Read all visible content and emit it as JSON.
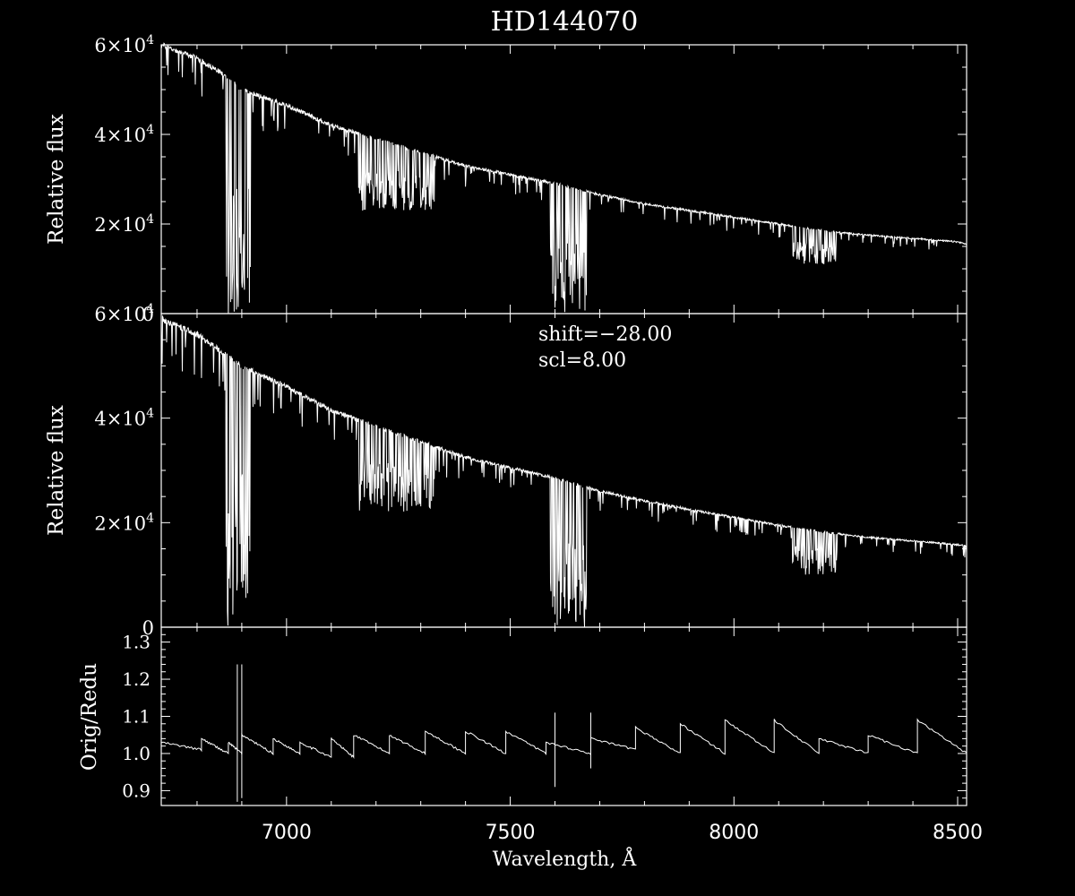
{
  "colors": {
    "background": "#000000",
    "foreground": "#ffffff"
  },
  "chart_data": [
    {
      "type": "line",
      "panel": "top",
      "title": "HD144070",
      "ylabel": "Relative flux",
      "xlim": [
        6720,
        8520
      ],
      "ylim": [
        0,
        60000
      ],
      "yticks": [
        {
          "value": 0,
          "base": "0",
          "exp": ""
        },
        {
          "value": 20000,
          "base": "2×10",
          "exp": "4"
        },
        {
          "value": 40000,
          "base": "4×10",
          "exp": "4"
        },
        {
          "value": 60000,
          "base": "6×10",
          "exp": "4"
        }
      ],
      "continuum": [
        [
          6720,
          60000
        ],
        [
          6800,
          57000
        ],
        [
          6850,
          54000
        ],
        [
          6900,
          50000
        ],
        [
          7000,
          46500
        ],
        [
          7100,
          42000
        ],
        [
          7200,
          39000
        ],
        [
          7300,
          36000
        ],
        [
          7400,
          33000
        ],
        [
          7500,
          31000
        ],
        [
          7600,
          29000
        ],
        [
          7680,
          27000
        ],
        [
          7700,
          26500
        ],
        [
          7800,
          24500
        ],
        [
          7900,
          23000
        ],
        [
          8000,
          21500
        ],
        [
          8100,
          20000
        ],
        [
          8200,
          18500
        ],
        [
          8300,
          17500
        ],
        [
          8400,
          16800
        ],
        [
          8500,
          16000
        ],
        [
          8520,
          15500
        ]
      ],
      "bands": [
        {
          "from": 6865,
          "to": 6920,
          "min": 0
        },
        {
          "from": 7590,
          "to": 7670,
          "min": 0
        },
        {
          "from": 7160,
          "to": 7330,
          "min": 23000
        },
        {
          "from": 8130,
          "to": 8230,
          "min": 11000
        }
      ]
    },
    {
      "type": "line",
      "panel": "middle",
      "ylabel": "Relative flux",
      "xlim": [
        6720,
        8520
      ],
      "ylim": [
        0,
        60000
      ],
      "annotations": [
        "shift=−28.00",
        "scl=8.00"
      ],
      "yticks": [
        {
          "value": 0,
          "base": "0",
          "exp": ""
        },
        {
          "value": 20000,
          "base": "2×10",
          "exp": "4"
        },
        {
          "value": 40000,
          "base": "4×10",
          "exp": "4"
        },
        {
          "value": 60000,
          "base": "6×10",
          "exp": "4"
        }
      ],
      "continuum": [
        [
          6720,
          59000
        ],
        [
          6800,
          56000
        ],
        [
          6850,
          53000
        ],
        [
          6900,
          50000
        ],
        [
          7000,
          46000
        ],
        [
          7100,
          41500
        ],
        [
          7200,
          38500
        ],
        [
          7300,
          35500
        ],
        [
          7400,
          32500
        ],
        [
          7500,
          30500
        ],
        [
          7600,
          28500
        ],
        [
          7680,
          26500
        ],
        [
          7700,
          26000
        ],
        [
          7800,
          24200
        ],
        [
          7900,
          22500
        ],
        [
          8000,
          21000
        ],
        [
          8100,
          19500
        ],
        [
          8200,
          18200
        ],
        [
          8300,
          17200
        ],
        [
          8400,
          16500
        ],
        [
          8500,
          15800
        ],
        [
          8520,
          15500
        ]
      ],
      "bands": [
        {
          "from": 6865,
          "to": 6920,
          "min": 0
        },
        {
          "from": 7590,
          "to": 7670,
          "min": 0
        },
        {
          "from": 7160,
          "to": 7330,
          "min": 22000
        },
        {
          "from": 8130,
          "to": 8230,
          "min": 10000
        }
      ]
    },
    {
      "type": "line",
      "panel": "bottom",
      "ylabel": "Orig/Redu",
      "xlabel": "Wavelength, Å",
      "xlim": [
        6720,
        8520
      ],
      "ylim": [
        0.86,
        1.34
      ],
      "yticks": [
        {
          "value": 0.9,
          "label": "0.9"
        },
        {
          "value": 1.0,
          "label": "1.0"
        },
        {
          "value": 1.1,
          "label": "1.1"
        },
        {
          "value": 1.2,
          "label": "1.2"
        },
        {
          "value": 1.3,
          "label": "1.3"
        }
      ],
      "xticks": [
        {
          "value": 7000,
          "label": "7000"
        },
        {
          "value": 7500,
          "label": "7500"
        },
        {
          "value": 8000,
          "label": "8000"
        },
        {
          "value": 8500,
          "label": "8500"
        }
      ],
      "sawtooth": [
        [
          6720,
          1.01,
          1.03
        ],
        [
          6810,
          1.0,
          1.04
        ],
        [
          6870,
          1.0,
          1.03
        ],
        [
          6900,
          1.0,
          1.05
        ],
        [
          6970,
          1.0,
          1.04
        ],
        [
          7030,
          0.99,
          1.03
        ],
        [
          7100,
          0.99,
          1.04
        ],
        [
          7150,
          1.0,
          1.05
        ],
        [
          7230,
          1.0,
          1.05
        ],
        [
          7310,
          1.0,
          1.06
        ],
        [
          7400,
          1.0,
          1.06
        ],
        [
          7490,
          1.0,
          1.06
        ],
        [
          7580,
          1.0,
          1.03
        ],
        [
          7680,
          1.01,
          1.04
        ],
        [
          7780,
          1.0,
          1.07
        ],
        [
          7880,
          1.0,
          1.08
        ],
        [
          7980,
          1.0,
          1.09
        ],
        [
          8090,
          1.0,
          1.09
        ],
        [
          8190,
          1.0,
          1.04
        ],
        [
          8300,
          1.0,
          1.05
        ],
        [
          8410,
          1.0,
          1.09
        ],
        [
          8520,
          0.99,
          1.0
        ]
      ],
      "spikes": [
        [
          6890,
          0.87,
          1.24
        ],
        [
          6900,
          0.88,
          1.24
        ],
        [
          7600,
          0.91,
          1.11
        ],
        [
          7680,
          0.96,
          1.11
        ]
      ]
    }
  ]
}
